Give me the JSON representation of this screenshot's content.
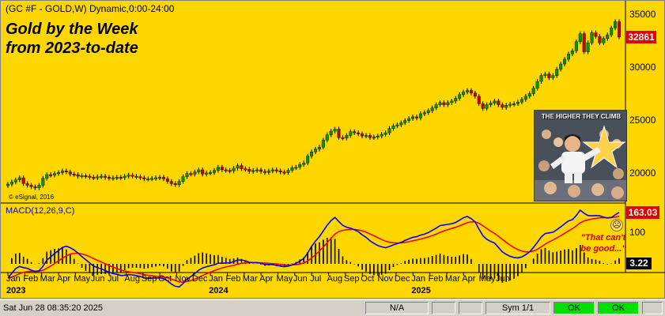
{
  "window": {
    "symbol_header": "(GC #F - GOLD,W) Dynamic,0:00-24:00",
    "headline_line1": "Gold by the Week",
    "headline_line2": "from 2023-to-date",
    "copyright": "© eSignal, 2016",
    "price_badge": "32861",
    "price_axis_ticks": [
      "35000",
      "30000",
      "25000",
      "20000"
    ],
    "macd": {
      "header": "MACD(12,26,9,C)",
      "macd_badge": "163.03",
      "axis_tick": "100",
      "histogram_badge": "3.22",
      "annotation_line1": "\"That can't",
      "annotation_line2": "be good...\"",
      "frown_icon": "frowning-face-icon"
    },
    "x_axis": {
      "months": [
        "Jan",
        "Feb",
        "Mar",
        "Apr",
        "May",
        "Jun",
        "Jul",
        "Aug",
        "Sep",
        "Oct",
        "Nov",
        "Dec",
        "Jan",
        "Feb",
        "Mar",
        "Apr",
        "May",
        "Jun",
        "Jul",
        "Aug",
        "Sep",
        "Oct",
        "Nov",
        "Dec",
        "Jan",
        "Feb",
        "Mar",
        "Apr",
        "May",
        "Jun"
      ],
      "years": [
        "2023",
        "2024",
        "2025"
      ]
    },
    "inset": {
      "title": "THE HIGHER THEY CLIMB",
      "image_icon": "performer-poster-icon"
    },
    "colors": {
      "background": "#ffd700",
      "up_candle": "#009900",
      "down_candle": "#cc0000",
      "macd_line": "#0000ff",
      "signal_line": "#ff0000"
    }
  },
  "status_bar": {
    "datetime": "Sat Jun 28 08:35:20 2025",
    "cell_na": "N/A",
    "cell_sym": "Sym 1/1",
    "ok1": "OK",
    "ok2": "OK"
  },
  "chart_data": [
    {
      "type": "candlestick",
      "title": "Gold by the Week",
      "subtitle": "from 2023-to-date",
      "xlabel": "",
      "ylabel": "",
      "ylim": [
        17500,
        35800
      ],
      "y_ticks": [
        20000,
        25000,
        30000,
        35000
      ],
      "last_value": 32861,
      "close": [
        18950,
        19150,
        19350,
        19550,
        19000,
        18850,
        18700,
        18600,
        18850,
        19500,
        19850,
        19800,
        19950,
        20050,
        20200,
        20100,
        19900,
        19850,
        19700,
        19750,
        19700,
        19600,
        19550,
        19650,
        19700,
        19600,
        19500,
        19550,
        19600,
        19550,
        19700,
        19800,
        19700,
        19650,
        19550,
        19450,
        19450,
        19500,
        19550,
        19600,
        19450,
        19200,
        19000,
        18900,
        19200,
        19650,
        19950,
        19900,
        20100,
        20300,
        19900,
        20000,
        20050,
        20250,
        20550,
        20300,
        20250,
        20200,
        20450,
        20700,
        20400,
        20350,
        20150,
        20250,
        20300,
        20150,
        20050,
        20200,
        20300,
        20200,
        20100,
        20050,
        20250,
        20500,
        20550,
        20800,
        20950,
        21600,
        22000,
        22250,
        22450,
        23100,
        23600,
        23950,
        24150,
        23350,
        23300,
        23550,
        23900,
        23800,
        23700,
        23500,
        23550,
        23350,
        23400,
        23500,
        23650,
        23800,
        24200,
        24450,
        24550,
        24750,
        24950,
        25150,
        25300,
        25200,
        25600,
        25700,
        25900,
        26150,
        26450,
        26650,
        26450,
        26650,
        26800,
        27050,
        27400,
        27650,
        27800,
        27550,
        27250,
        26550,
        26100,
        26450,
        26600,
        26800,
        26450,
        26200,
        26400,
        26500,
        26550,
        26700,
        26950,
        27250,
        27500,
        28000,
        28650,
        29200,
        29350,
        29000,
        29200,
        29800,
        30300,
        30750,
        31250,
        31550,
        32400,
        33150,
        31450,
        32300,
        33250,
        32900,
        32300,
        32700,
        33050,
        33700,
        34300,
        32861
      ],
      "macd": [
        -45,
        -30,
        -15,
        -8,
        -12,
        -14,
        -20,
        -24,
        -22,
        -8,
        12,
        22,
        33,
        42,
        52,
        56,
        51,
        44,
        34,
        23,
        13,
        3,
        -7,
        -12,
        -16,
        -21,
        -27,
        -31,
        -33,
        -37,
        -36,
        -34,
        -35,
        -37,
        -40,
        -44,
        -45,
        -45,
        -45,
        -44,
        -47,
        -54,
        -64,
        -71,
        -73,
        -62,
        -48,
        -40,
        -31,
        -20,
        -13,
        -9,
        -6,
        -3,
        2,
        2,
        3,
        3,
        7,
        12,
        12,
        10,
        5,
        4,
        4,
        2,
        -2,
        -2,
        -2,
        -5,
        -7,
        -9,
        -7,
        -3,
        1,
        9,
        17,
        34,
        55,
        72,
        86,
        104,
        122,
        137,
        147,
        134,
        122,
        116,
        113,
        108,
        102,
        92,
        84,
        73,
        65,
        58,
        54,
        51,
        55,
        60,
        64,
        68,
        74,
        79,
        84,
        86,
        91,
        94,
        99,
        106,
        113,
        121,
        123,
        125,
        127,
        131,
        138,
        146,
        150,
        143,
        133,
        110,
        89,
        78,
        71,
        66,
        52,
        38,
        30,
        24,
        20,
        19,
        22,
        29,
        38,
        52,
        68,
        85,
        96,
        98,
        100,
        108,
        117,
        127,
        136,
        140,
        153,
        170,
        160,
        153,
        152,
        153,
        152,
        148,
        145,
        147,
        155,
        163
      ]
    }
  ]
}
